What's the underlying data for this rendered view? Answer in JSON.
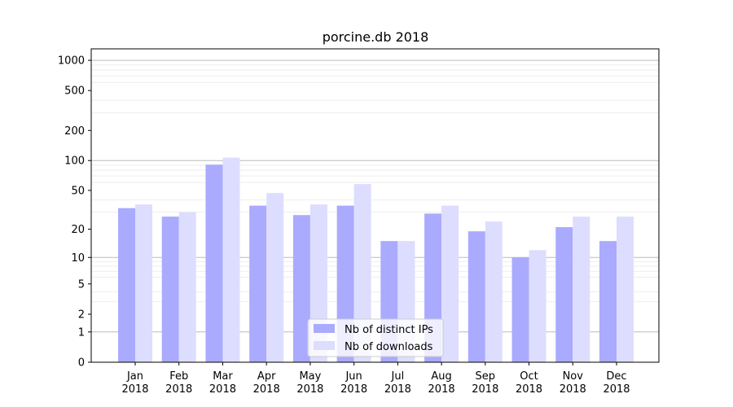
{
  "chart_data": {
    "type": "bar",
    "title": "porcine.db 2018",
    "xlabel": "",
    "ylabel": "",
    "y_scale": "log1p",
    "ylim": [
      0,
      1300
    ],
    "y_ticks": [
      0,
      1,
      2,
      5,
      10,
      20,
      50,
      100,
      200,
      500,
      1000
    ],
    "categories": [
      "Jan\n2018",
      "Feb\n2018",
      "Mar\n2018",
      "Apr\n2018",
      "May\n2018",
      "Jun\n2018",
      "Jul\n2018",
      "Aug\n2018",
      "Sep\n2018",
      "Oct\n2018",
      "Nov\n2018",
      "Dec\n2018"
    ],
    "series": [
      {
        "name": "Nb of distinct IPs",
        "color": "#aaaaff",
        "values": [
          33,
          27,
          91,
          35,
          28,
          35,
          15,
          29,
          19,
          10,
          21,
          15
        ]
      },
      {
        "name": "Nb of downloads",
        "color": "#ddddff",
        "values": [
          36,
          30,
          107,
          47,
          36,
          58,
          15,
          35,
          24,
          12,
          27,
          27
        ]
      }
    ],
    "legend_position": "bottom-center",
    "grid": true
  }
}
